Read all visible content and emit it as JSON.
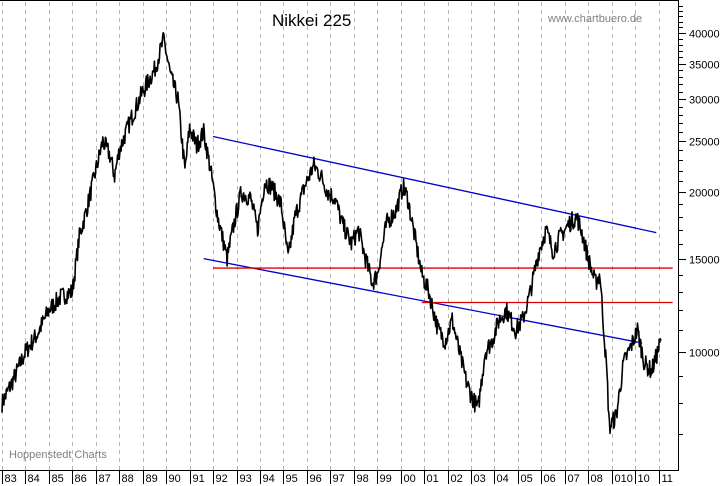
{
  "chart_data": {
    "type": "line",
    "title": "Nikkei 225",
    "watermark": "www.chartbuero.de",
    "source": "Hoppenstedt Charts",
    "xlabel": "",
    "ylabel": "",
    "y_scale": "log",
    "ylim": [
      6000,
      46000
    ],
    "grid": {
      "vertical": true,
      "horizontal": false,
      "style": "dashed",
      "color": "#b4b4b4"
    },
    "x_tick_labels": [
      "83",
      "84",
      "85",
      "86",
      "87",
      "88",
      "89",
      "90",
      "91",
      "92",
      "93",
      "94",
      "95",
      "96",
      "97",
      "98",
      "99",
      "00",
      "01",
      "02",
      "03",
      "04",
      "05",
      "06",
      "07",
      "08",
      "010",
      "10",
      "11"
    ],
    "y_tick_labels": [
      "40000",
      "35000",
      "30000",
      "25000",
      "20000",
      "15000",
      "10000"
    ],
    "y_tick_values": [
      40000,
      35000,
      30000,
      25000,
      20000,
      15000,
      10000
    ],
    "series": [
      {
        "name": "Nikkei 225",
        "color": "#000000",
        "x": [
          1983.0,
          1983.5,
          1984.0,
          1984.5,
          1985.0,
          1985.5,
          1986.0,
          1986.3,
          1986.6,
          1987.0,
          1987.3,
          1987.6,
          1987.8,
          1988.0,
          1988.5,
          1989.0,
          1989.5,
          1989.9,
          1990.2,
          1990.5,
          1990.8,
          1991.0,
          1991.3,
          1991.6,
          1991.9,
          1992.2,
          1992.6,
          1992.9,
          1993.2,
          1993.6,
          1993.9,
          1994.2,
          1994.5,
          1994.9,
          1995.2,
          1995.5,
          1995.9,
          1996.3,
          1996.6,
          1996.9,
          1997.2,
          1997.5,
          1997.9,
          1998.2,
          1998.5,
          1998.8,
          1999.0,
          1999.4,
          1999.8,
          2000.1,
          2000.3,
          2000.6,
          2000.9,
          2001.2,
          2001.6,
          2001.9,
          2002.2,
          2002.5,
          2002.8,
          2003.0,
          2003.3,
          2003.6,
          2003.9,
          2004.2,
          2004.5,
          2004.9,
          2005.2,
          2005.5,
          2005.9,
          2006.2,
          2006.5,
          2006.8,
          2007.2,
          2007.5,
          2007.7,
          2008.0,
          2008.3,
          2008.5,
          2008.8,
          2008.9,
          2009.2,
          2009.5,
          2009.8,
          2010.1,
          2010.4,
          2010.7,
          2010.9,
          2011.1
        ],
        "values": [
          8000,
          8900,
          10000,
          10800,
          12000,
          12700,
          13000,
          16500,
          18500,
          22000,
          25000,
          23500,
          21500,
          24000,
          27500,
          31000,
          34000,
          38900,
          33000,
          30000,
          22000,
          26500,
          24500,
          26000,
          22000,
          18000,
          15000,
          17500,
          20000,
          19500,
          17000,
          21000,
          20500,
          19000,
          15000,
          18000,
          20500,
          22500,
          21500,
          20000,
          19500,
          17500,
          16000,
          17000,
          15000,
          13500,
          14000,
          17500,
          18500,
          20500,
          19500,
          16500,
          14000,
          13000,
          11000,
          10500,
          11500,
          10000,
          8800,
          8300,
          7800,
          10000,
          10500,
          11500,
          12000,
          11000,
          11500,
          12800,
          15500,
          17000,
          15500,
          16500,
          17500,
          18000,
          17000,
          15000,
          13500,
          14000,
          9000,
          7200,
          7600,
          9500,
          10200,
          11000,
          9500,
          9200,
          9800,
          10500
        ]
      }
    ],
    "annotations": [
      {
        "type": "trendline",
        "color": "#0000cc",
        "label": "upper channel",
        "from": {
          "x": 1992.0,
          "y": 25500
        },
        "to": {
          "x": 2010.9,
          "y": 16800
        }
      },
      {
        "type": "trendline",
        "color": "#0000cc",
        "label": "lower channel",
        "from": {
          "x": 1991.6,
          "y": 15000
        },
        "to": {
          "x": 2010.3,
          "y": 10400
        }
      },
      {
        "type": "horizontal",
        "color": "#e00000",
        "label": "support/resistance",
        "y": 14400,
        "from_x": 1992.0,
        "to_x": 2011.6
      },
      {
        "type": "horizontal",
        "color": "#e00000",
        "label": "support/resistance",
        "y": 12400,
        "from_x": 2000.9,
        "to_x": 2011.6
      }
    ]
  }
}
